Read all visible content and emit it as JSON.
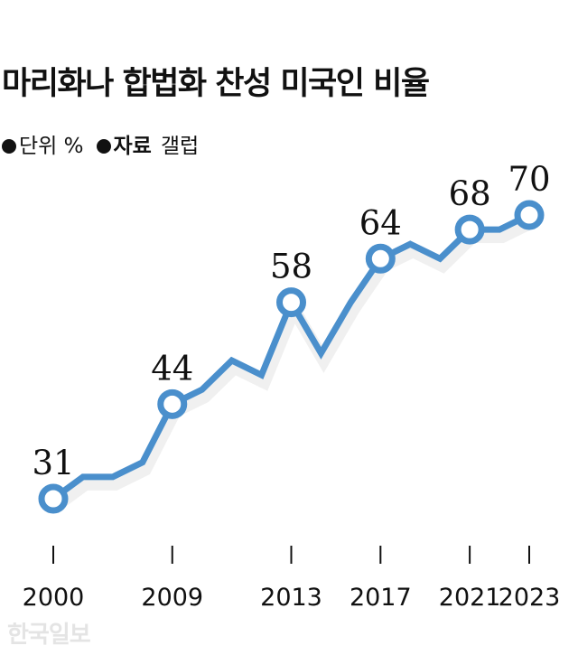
{
  "title": "마리화나 합법화 찬성 미국인 비율",
  "unit_label": "단위",
  "unit_value": "%",
  "source_label": "자료",
  "source_value": "갤럽",
  "watermark": "한국일보",
  "line_color": "#4a8fcc",
  "chart_data": {
    "type": "line",
    "title": "마리화나 합법화 찬성 미국인 비율",
    "x": [
      "2000",
      "2001",
      "2003",
      "2005",
      "2009",
      "2010",
      "2011",
      "2012",
      "2013",
      "2014",
      "2015",
      "2017",
      "2018",
      "2019",
      "2021",
      "2022",
      "2023"
    ],
    "values": [
      31,
      34,
      34,
      36,
      44,
      46,
      50,
      48,
      58,
      51,
      58,
      64,
      66,
      64,
      68,
      68,
      70
    ],
    "labeled_points": [
      "2000",
      "2009",
      "2013",
      "2017",
      "2021",
      "2023"
    ],
    "tick_labels": [
      "2000",
      "2009",
      "2013",
      "2017",
      "2021",
      "2023"
    ],
    "ylim": [
      31,
      70
    ],
    "grid": false,
    "legend": "none"
  }
}
